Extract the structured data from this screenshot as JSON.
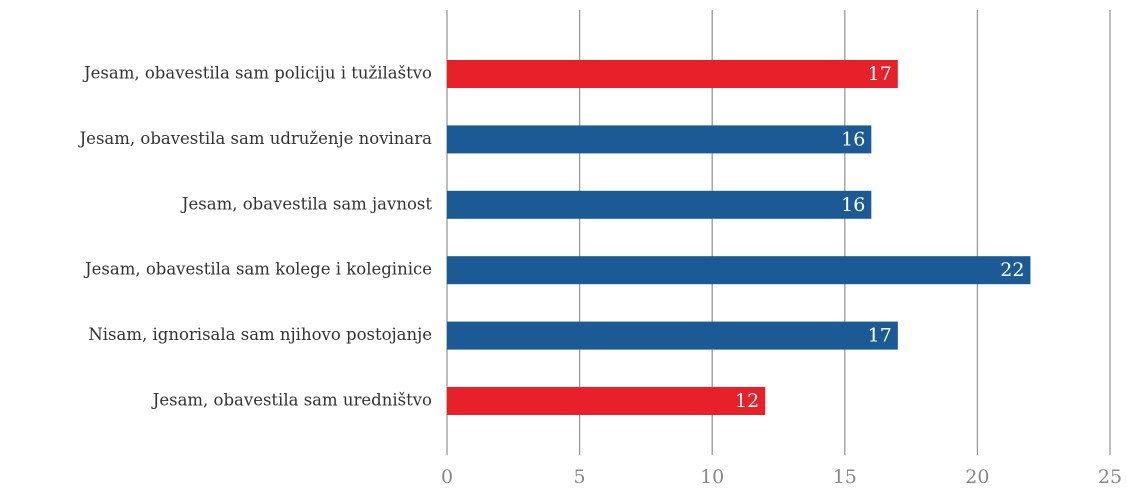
{
  "chart_data": {
    "type": "barh",
    "categories": [
      "Jesam, obavestila sam policiju i tužilaštvo",
      "Jesam, obavestila sam udruženje novinara",
      "Jesam, obavestila sam javnost",
      "Jesam, obavestila sam kolege i koleginice",
      "Nisam, ignorisala sam njihovo postojanje",
      "Jesam, obavestila sam uredništvo"
    ],
    "values": [
      17,
      16,
      16,
      22,
      17,
      12
    ],
    "colors": [
      "#e8202a",
      "#1c5a96",
      "#1c5a96",
      "#1c5a96",
      "#1c5a96",
      "#e8202a"
    ],
    "xlim": [
      0,
      25
    ],
    "xticks": [
      0,
      5,
      10,
      15,
      20,
      25
    ],
    "grid": true
  }
}
